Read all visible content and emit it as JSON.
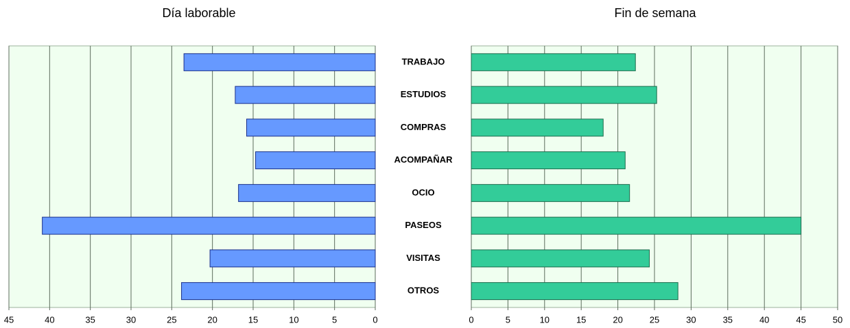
{
  "chart_data": [
    {
      "type": "bar",
      "orientation": "horizontal",
      "title": "Día laborable",
      "categories": [
        "TRABAJO",
        "ESTUDIOS",
        "COMPRAS",
        "ACOMPAÑAR",
        "OCIO",
        "PASEOS",
        "VISITAS",
        "OTROS"
      ],
      "values": [
        23.5,
        17.2,
        15.8,
        14.7,
        16.8,
        40.9,
        20.3,
        23.8
      ],
      "color": "#6699ff",
      "xlim": [
        45,
        0
      ],
      "xticks": [
        45,
        40,
        35,
        30,
        25,
        20,
        15,
        10,
        5,
        0
      ],
      "grid": true
    },
    {
      "type": "bar",
      "orientation": "horizontal",
      "title": "Fin de semana",
      "values": [
        22.4,
        25.3,
        18.0,
        21.0,
        21.6,
        45.0,
        24.3,
        28.2
      ],
      "color": "#33cc99",
      "xlim": [
        0,
        50
      ],
      "xticks": [
        0,
        5,
        10,
        15,
        20,
        25,
        30,
        35,
        40,
        45,
        50
      ],
      "grid": true
    }
  ]
}
